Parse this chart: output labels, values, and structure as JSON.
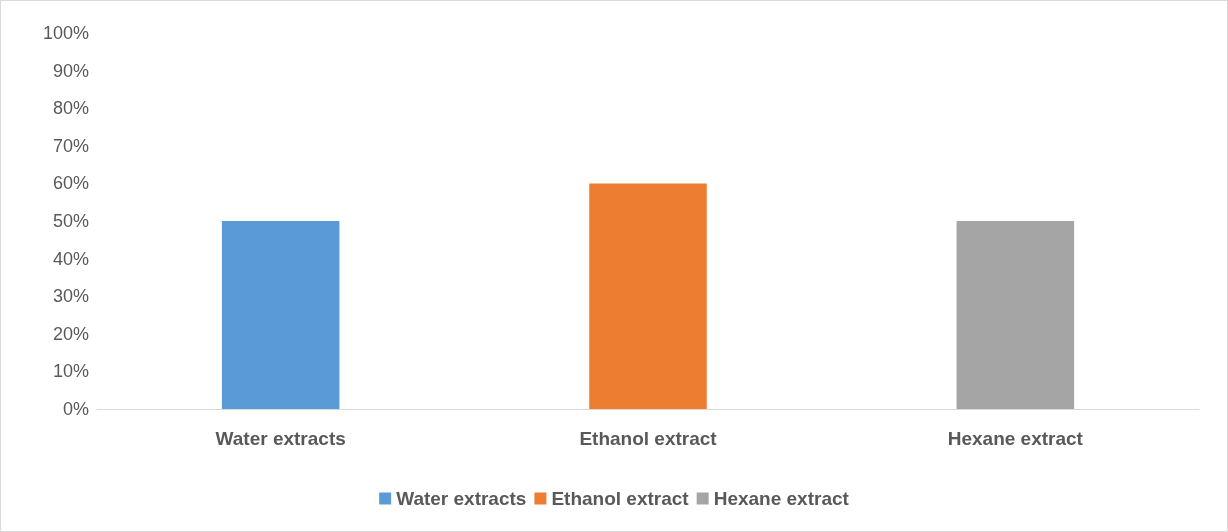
{
  "chart_data": {
    "type": "bar",
    "categories": [
      "Water extracts",
      "Ethanol extract",
      "Hexane extract"
    ],
    "series": [
      {
        "name": "Water extracts",
        "color": "#5b9bd5",
        "values": [
          50,
          null,
          null
        ]
      },
      {
        "name": "Ethanol extract",
        "color": "#ed7d31",
        "values": [
          null,
          60,
          null
        ]
      },
      {
        "name": "Hexane extract",
        "color": "#a5a5a5",
        "values": [
          null,
          null,
          50
        ]
      }
    ],
    "ylim": [
      0,
      100
    ],
    "yticks": [
      {
        "value": 0,
        "label": "0%"
      },
      {
        "value": 10,
        "label": "10%"
      },
      {
        "value": 20,
        "label": "20%"
      },
      {
        "value": 30,
        "label": "30%"
      },
      {
        "value": 40,
        "label": "40%"
      },
      {
        "value": 50,
        "label": "50%"
      },
      {
        "value": 60,
        "label": "60%"
      },
      {
        "value": 70,
        "label": "70%"
      },
      {
        "value": 80,
        "label": "80%"
      },
      {
        "value": 90,
        "label": "90%"
      },
      {
        "value": 100,
        "label": "100%"
      }
    ],
    "grid": false,
    "legend": "bottom"
  }
}
